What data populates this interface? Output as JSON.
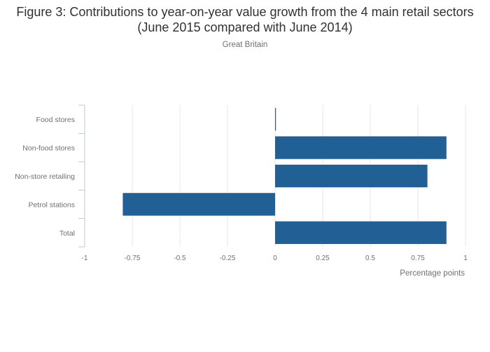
{
  "chart_data": {
    "type": "bar",
    "orientation": "horizontal",
    "title": "Figure 3: Contributions to year-on-year value growth from the 4 main retail sectors (June 2015 compared with June 2014)",
    "subtitle": "Great Britain",
    "xlabel": "Percentage points",
    "ylabel": "",
    "categories": [
      "Food stores",
      "Non-food stores",
      "Non-store retailing",
      "Petrol stations",
      "Total"
    ],
    "values": [
      0.0,
      0.9,
      0.8,
      -0.8,
      0.9
    ],
    "xlim": [
      -1,
      1
    ],
    "xticks": [
      -1,
      -0.75,
      -0.5,
      -0.25,
      0,
      0.25,
      0.5,
      0.75,
      1
    ],
    "xtick_labels": [
      "-1",
      "-0.75",
      "-0.5",
      "-0.25",
      "0",
      "0.25",
      "0.5",
      "0.75",
      "1"
    ],
    "grid": true,
    "bar_color": "#206095",
    "grid_color": "#e6e6e6",
    "axis_color": "#bcc9d9"
  }
}
